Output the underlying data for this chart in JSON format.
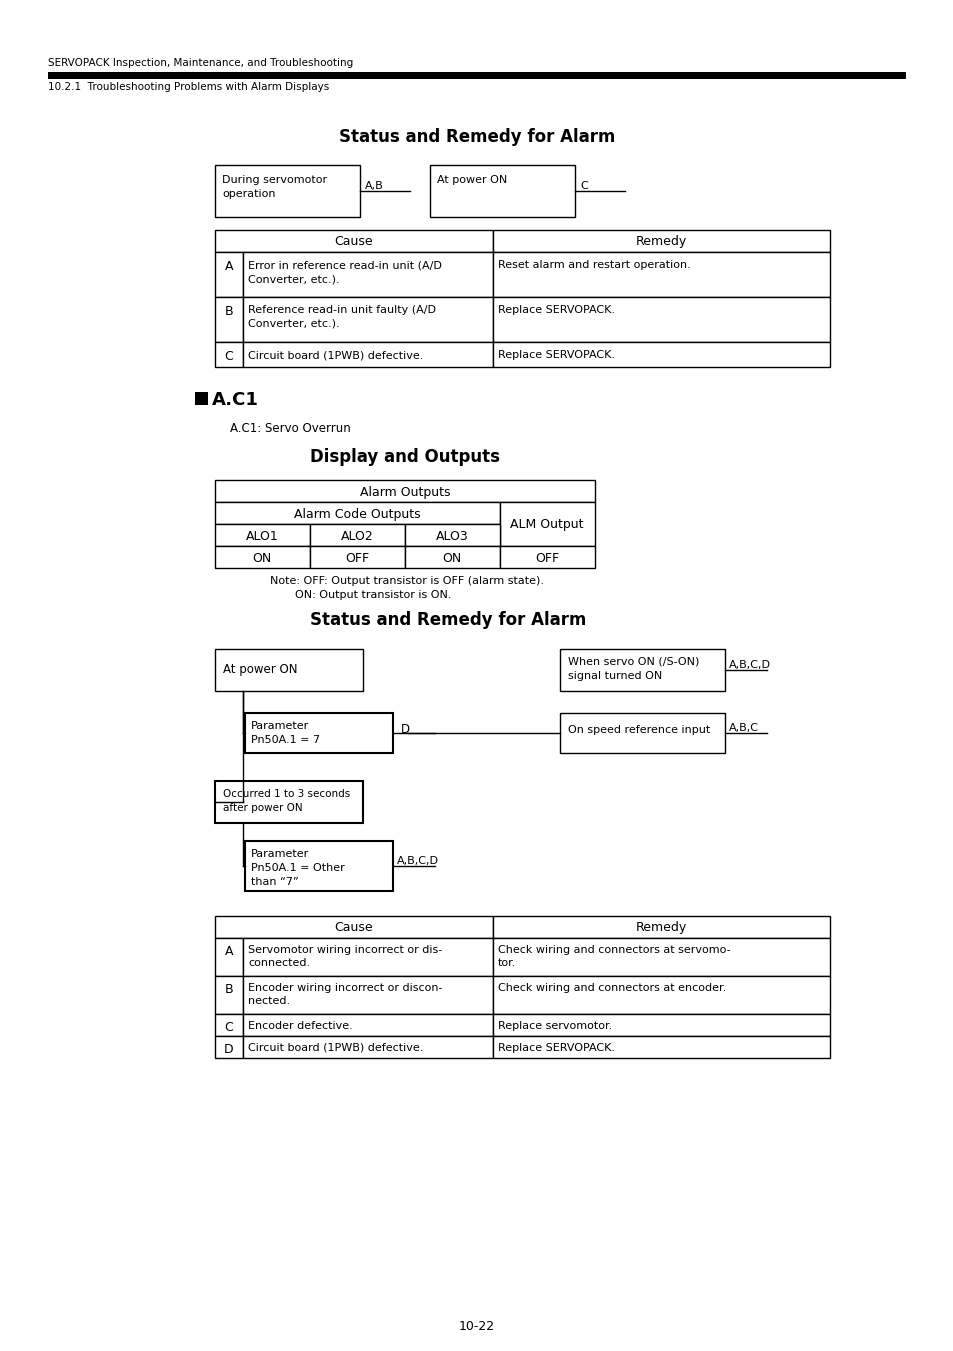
{
  "header_line1": "SERVOPACK Inspection, Maintenance, and Troubleshooting",
  "header_line2": "10.2.1  Troubleshooting Problems with Alarm Displays",
  "section1_title": "Status and Remedy for Alarm",
  "ac1_heading": "A.C1",
  "ac1_desc": "A.C1: Servo Overrun",
  "section2_title": "Display and Outputs",
  "section3_title": "Status and Remedy for Alarm",
  "footer": "10-22",
  "bg_color": "#ffffff"
}
